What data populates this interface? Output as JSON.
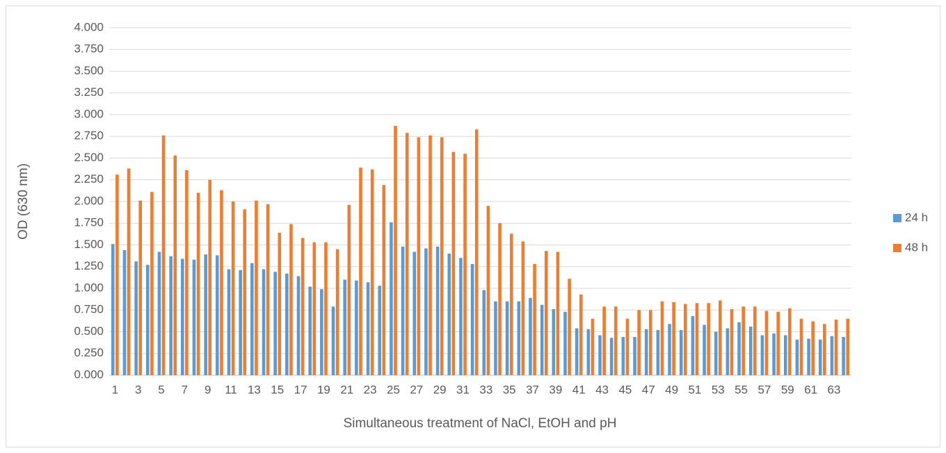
{
  "chart_data": {
    "type": "bar",
    "y_label": "OD (630 nm)",
    "x_label": "Simultaneous treatment of NaCl, EtOH and pH",
    "categories": [
      "1",
      null,
      "3",
      null,
      "5",
      null,
      "7",
      null,
      "9",
      null,
      "11",
      null,
      "13",
      null,
      "15",
      null,
      "17",
      null,
      "19",
      null,
      "21",
      null,
      "23",
      null,
      "25",
      null,
      "27",
      null,
      "29",
      null,
      "31",
      null,
      "33",
      null,
      "35",
      null,
      "37",
      null,
      "39",
      null,
      "41",
      null,
      "43",
      null,
      "45",
      null,
      "47",
      null,
      "49",
      null,
      "51",
      null,
      "53",
      null,
      "55",
      null,
      "57",
      null,
      "59",
      null,
      "61",
      null,
      "63",
      null
    ],
    "series": [
      {
        "name": "24 h",
        "color": "#5b9bd5",
        "values": [
          1.51,
          1.44,
          1.31,
          1.27,
          1.42,
          1.37,
          1.34,
          1.33,
          1.39,
          1.38,
          1.22,
          1.21,
          1.29,
          1.22,
          1.19,
          1.17,
          1.14,
          1.02,
          0.99,
          0.79,
          1.1,
          1.09,
          1.07,
          1.03,
          1.76,
          1.48,
          1.42,
          1.46,
          1.48,
          1.4,
          1.35,
          1.28,
          0.98,
          0.85,
          0.85,
          0.85,
          0.89,
          0.81,
          0.76,
          0.73,
          0.54,
          0.53,
          0.46,
          0.43,
          0.44,
          0.44,
          0.53,
          0.52,
          0.59,
          0.52,
          0.68,
          0.58,
          0.5,
          0.54,
          0.61,
          0.56,
          0.46,
          0.48,
          0.46,
          0.41,
          0.42,
          0.41,
          0.45,
          0.44
        ]
      },
      {
        "name": "48 h",
        "color": "#ed7d31",
        "values": [
          2.31,
          2.38,
          2.01,
          2.11,
          2.76,
          2.53,
          2.36,
          2.1,
          2.25,
          2.13,
          2.0,
          1.91,
          2.01,
          1.97,
          1.64,
          1.74,
          1.58,
          1.53,
          1.53,
          1.45,
          1.96,
          2.39,
          2.37,
          2.19,
          2.87,
          2.79,
          2.74,
          2.76,
          2.74,
          2.57,
          2.55,
          2.83,
          1.95,
          1.75,
          1.63,
          1.54,
          1.28,
          1.43,
          1.42,
          1.11,
          0.93,
          0.65,
          0.79,
          0.79,
          0.65,
          0.75,
          0.75,
          0.85,
          0.84,
          0.82,
          0.83,
          0.83,
          0.86,
          0.76,
          0.79,
          0.79,
          0.74,
          0.73,
          0.77,
          0.65,
          0.62,
          0.59,
          0.64,
          0.65
        ]
      }
    ],
    "ylim": [
      0,
      4
    ],
    "yticks": [
      {
        "value": 0,
        "label": "0.000"
      },
      {
        "value": 0.25,
        "label": "0.250"
      },
      {
        "value": 0.5,
        "label": "0.500"
      },
      {
        "value": 0.75,
        "label": "0.750"
      },
      {
        "value": 1,
        "label": "1.000"
      },
      {
        "value": 1.25,
        "label": "1.250"
      },
      {
        "value": 1.5,
        "label": "1.500"
      },
      {
        "value": 1.75,
        "label": "1.750"
      },
      {
        "value": 2,
        "label": "2.000"
      },
      {
        "value": 2.25,
        "label": "2.250"
      },
      {
        "value": 2.5,
        "label": "2.500"
      },
      {
        "value": 2.75,
        "label": "2.750"
      },
      {
        "value": 3,
        "label": "3.000"
      },
      {
        "value": 3.25,
        "label": "3.250"
      },
      {
        "value": 3.5,
        "label": "3.500"
      },
      {
        "value": 3.75,
        "label": "3.750"
      },
      {
        "value": 4,
        "label": "4.000"
      }
    ],
    "grid": true,
    "legend": "right"
  }
}
